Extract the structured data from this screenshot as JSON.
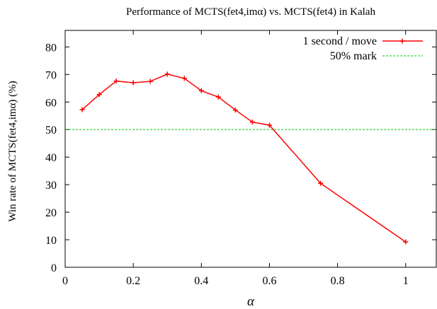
{
  "chart_data": {
    "type": "line",
    "title": "Performance of MCTS(fet4,imα) vs. MCTS(fet4) in Kalah",
    "xlabel": "α",
    "ylabel": "Win rate of MCTS(fet4,imα) (%)",
    "xlim": [
      0,
      1.09
    ],
    "ylim": [
      0,
      86
    ],
    "xticks": [
      0,
      0.2,
      0.4,
      0.6,
      0.8,
      1
    ],
    "xtick_labels": [
      "0",
      "0.2",
      "0.4",
      "0.6",
      "0.8",
      "1"
    ],
    "yticks": [
      0,
      10,
      20,
      30,
      40,
      50,
      60,
      70,
      80
    ],
    "ytick_labels": [
      "0",
      "10",
      "20",
      "30",
      "40",
      "50",
      "60",
      "70",
      "80"
    ],
    "grid": false,
    "legend_position": "top-right",
    "series": [
      {
        "name": "1 second / move",
        "color": "#ff0000",
        "marker": "plus",
        "x": [
          0.05,
          0.1,
          0.15,
          0.2,
          0.25,
          0.3,
          0.35,
          0.4,
          0.45,
          0.5,
          0.55,
          0.6,
          0.75,
          1.0
        ],
        "y": [
          57.2,
          62.7,
          67.6,
          67.0,
          67.5,
          70.1,
          68.6,
          64.1,
          61.8,
          57.1,
          52.7,
          51.6,
          30.5,
          9.2
        ]
      },
      {
        "name": "50% mark",
        "color": "#00cc00",
        "style": "dashed",
        "hline": 50
      }
    ]
  }
}
